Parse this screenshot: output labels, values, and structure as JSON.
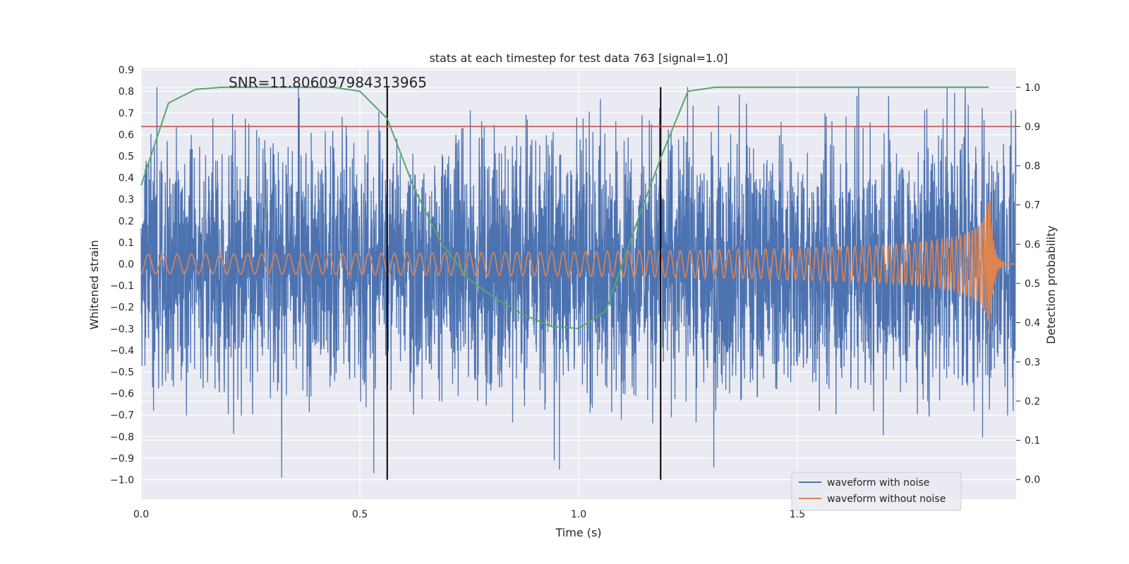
{
  "chart_data": {
    "type": "line",
    "title": "stats at each timestep for test data 763 [signal=1.0]",
    "xlabel": "Time (s)",
    "ylabel": "Whitened strain",
    "y2label": "Detection probability",
    "xlim": [
      0.0,
      2.0
    ],
    "ylim": [
      -1.09,
      0.91
    ],
    "y2lim": [
      -0.05,
      1.05
    ],
    "xticks": [
      0.0,
      0.5,
      1.0,
      1.5
    ],
    "xtick_labels": [
      "0.0",
      "0.5",
      "1.0",
      "1.5"
    ],
    "yticks": [
      0.9,
      0.8,
      0.7,
      0.6,
      0.5,
      0.4,
      0.3,
      0.2,
      0.1,
      0.0,
      -0.1,
      -0.2,
      -0.3,
      -0.4,
      -0.5,
      -0.6,
      -0.7,
      -0.8,
      -0.9,
      -1.0
    ],
    "ytick_labels": [
      "0.9",
      "0.8",
      "0.7",
      "0.6",
      "0.5",
      "0.4",
      "0.3",
      "0.2",
      "0.1",
      "0.0",
      "−0.1",
      "−0.2",
      "−0.3",
      "−0.4",
      "−0.5",
      "−0.6",
      "−0.7",
      "−0.8",
      "−0.9",
      "−1.0"
    ],
    "y2ticks": [
      1.0,
      0.9,
      0.8,
      0.7,
      0.6,
      0.5,
      0.4,
      0.3,
      0.2,
      0.1,
      0.0
    ],
    "y2tick_labels": [
      "1.0",
      "0.9",
      "0.8",
      "0.7",
      "0.6",
      "0.5",
      "0.4",
      "0.3",
      "0.2",
      "0.1",
      "0.0"
    ],
    "grid": true,
    "legend_position": "bottom-right",
    "annotation": "SNR=11.806097984313965",
    "threshold_line": {
      "axis": "right",
      "y": 0.9,
      "color": "#c44e52"
    },
    "vertical_lines": [
      {
        "x": 0.5625,
        "y_from": -1.0,
        "y_to": 0.82,
        "color": "#000000"
      },
      {
        "x": 1.1875,
        "y_from": -1.0,
        "y_to": 0.82,
        "color": "#000000"
      }
    ],
    "series": [
      {
        "name": "waveform with noise",
        "color": "#4c72b0",
        "axis": "left",
        "kind": "noisy_waveform",
        "duration": 2.0,
        "samples": 4096,
        "amplitude_range": [
          -1.0,
          0.82
        ]
      },
      {
        "name": "waveform without noise",
        "color": "#dd8452",
        "axis": "left",
        "kind": "chirp",
        "duration": 2.0,
        "merger_time": 1.94,
        "start_frequency_hz": 30,
        "start_amplitude": 0.045,
        "peak_amplitude": 0.33
      },
      {
        "name": "detection probability",
        "color": "#55a868",
        "axis": "right",
        "kind": "polyline",
        "x": [
          0.0,
          0.0625,
          0.125,
          0.1875,
          0.25,
          0.3125,
          0.375,
          0.4375,
          0.5,
          0.5625,
          0.625,
          0.6875,
          0.75,
          0.8125,
          0.875,
          0.9375,
          1.0,
          1.0625,
          1.125,
          1.1875,
          1.25,
          1.3125,
          1.375,
          1.4375,
          1.5,
          1.5625,
          1.625,
          1.6875,
          1.75,
          1.8125,
          1.875,
          1.9375
        ],
        "y": [
          0.75,
          0.96,
          0.995,
          1.0,
          1.0,
          1.0,
          1.0,
          1.0,
          0.99,
          0.92,
          0.74,
          0.6,
          0.51,
          0.46,
          0.42,
          0.39,
          0.385,
          0.43,
          0.63,
          0.82,
          0.99,
          1.0,
          1.0,
          1.0,
          1.0,
          1.0,
          1.0,
          1.0,
          1.0,
          1.0,
          1.0,
          1.0
        ]
      }
    ]
  }
}
